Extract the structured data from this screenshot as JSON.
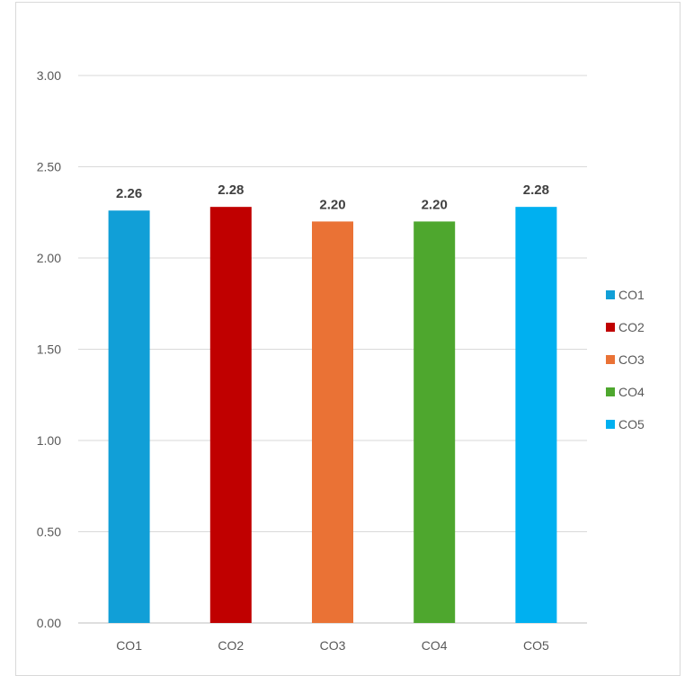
{
  "chart_data": {
    "type": "bar",
    "categories": [
      "CO1",
      "CO2",
      "CO3",
      "CO4",
      "CO5"
    ],
    "values": [
      2.26,
      2.28,
      2.2,
      2.2,
      2.28
    ],
    "data_labels": [
      "2.26",
      "2.28",
      "2.20",
      "2.20",
      "2.28"
    ],
    "colors": [
      "#119fd7",
      "#c00000",
      "#ea7235",
      "#4ea72e",
      "#00b0f0"
    ],
    "ylim": [
      0,
      3
    ],
    "y_ticks": [
      "0.00",
      "0.50",
      "1.00",
      "1.50",
      "2.00",
      "2.50",
      "3.00"
    ],
    "y_tick_values": [
      0,
      0.5,
      1,
      1.5,
      2,
      2.5,
      3
    ],
    "grid": true,
    "legend_position": "right",
    "legend": [
      "CO1",
      "CO2",
      "CO3",
      "CO4",
      "CO5"
    ],
    "title": "",
    "xlabel": "",
    "ylabel": ""
  }
}
